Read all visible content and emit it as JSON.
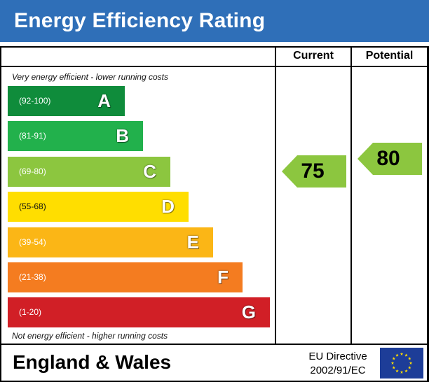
{
  "title": "Energy Efficiency Rating",
  "columns": {
    "current_label": "Current",
    "potential_label": "Potential"
  },
  "captions": {
    "top": "Very energy efficient - lower running costs",
    "bottom": "Not energy efficient - higher running costs"
  },
  "chart_data": {
    "type": "bar",
    "categories": [
      "A",
      "B",
      "C",
      "D",
      "E",
      "F",
      "G"
    ],
    "ranges": [
      "(92-100)",
      "(81-91)",
      "(69-80)",
      "(55-68)",
      "(39-54)",
      "(21-38)",
      "(1-20)"
    ],
    "colors": [
      "#0f8c3b",
      "#22b14c",
      "#8cc63f",
      "#ffde00",
      "#fbb616",
      "#f47c20",
      "#d11f26"
    ],
    "current": {
      "value": 75,
      "band": "C",
      "color": "#8cc63f"
    },
    "potential": {
      "value": 80,
      "band": "C",
      "color": "#8cc63f"
    }
  },
  "footer": {
    "region": "England & Wales",
    "directive_line1": "EU Directive",
    "directive_line2": "2002/91/EC"
  },
  "colors": {
    "title_bar": "#2f6fb8",
    "eu_flag_blue": "#1d3d98",
    "eu_flag_stars": "#ffdd00"
  }
}
